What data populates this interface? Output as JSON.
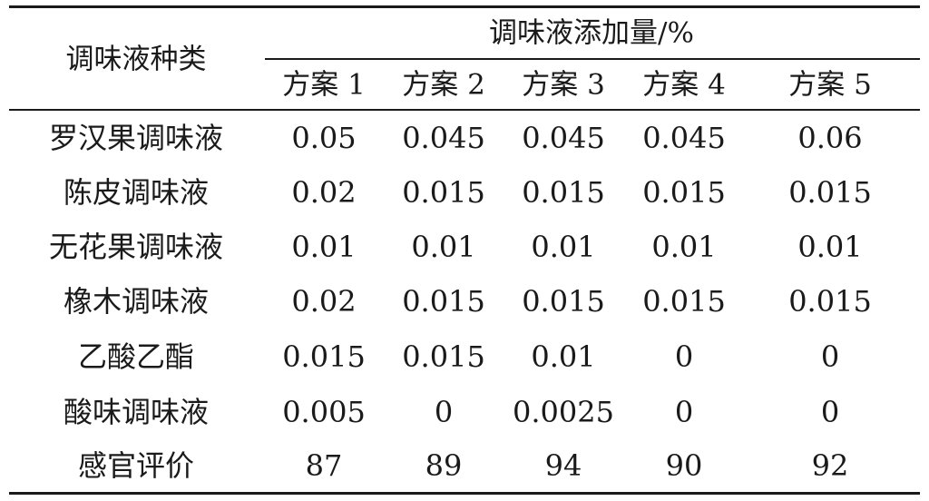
{
  "table": {
    "row_header": "调味液种类",
    "group_header": "调味液添加量/%",
    "columns": [
      "方案 1",
      "方案 2",
      "方案 3",
      "方案 4",
      "方案 5"
    ],
    "rows": [
      {
        "name": "罗汉果调味液",
        "values": [
          "0.05",
          "0.045",
          "0.045",
          "0.045",
          "0.06"
        ]
      },
      {
        "name": "陈皮调味液",
        "values": [
          "0.02",
          "0.015",
          "0.015",
          "0.015",
          "0.015"
        ]
      },
      {
        "name": "无花果调味液",
        "values": [
          "0.01",
          "0.01",
          "0.01",
          "0.01",
          "0.01"
        ]
      },
      {
        "name": "橡木调味液",
        "values": [
          "0.02",
          "0.015",
          "0.015",
          "0.015",
          "0.015"
        ]
      },
      {
        "name": "乙酸乙酯",
        "values": [
          "0.015",
          "0.015",
          "0.01",
          "0",
          "0"
        ]
      },
      {
        "name": "酸味调味液",
        "values": [
          "0.005",
          "0",
          "0.0025",
          "0",
          "0"
        ]
      },
      {
        "name": "感官评价",
        "values": [
          "87",
          "89",
          "94",
          "90",
          "92"
        ]
      }
    ]
  }
}
